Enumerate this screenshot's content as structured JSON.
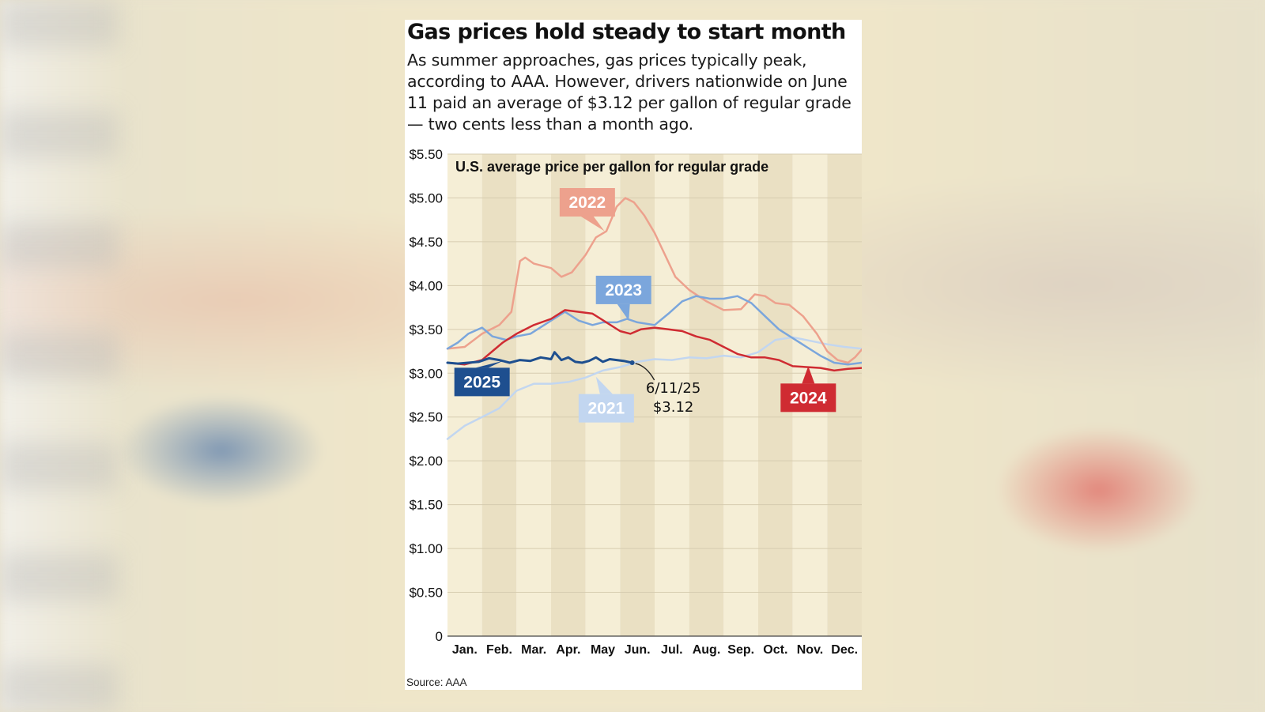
{
  "header": {
    "title": "Gas prices hold steady to start month",
    "subtitle": "As summer approaches, gas prices typically peak, according to AAA. However, drivers nationwide on June 11 paid an average of $3.12 per gallon of regular grade — two cents less than a month ago."
  },
  "footer": {
    "source": "Source: AAA"
  },
  "colors": {
    "y2021": "#c2d6f0",
    "y2022": "#eda18d",
    "y2023": "#7ba6dc",
    "y2024": "#cf2b32",
    "y2025": "#1e4f8f",
    "band_light": "#f5eed6",
    "band_dark": "#eae0c3",
    "grid": "#d6ccb0"
  },
  "chart_data": {
    "type": "line",
    "title": "U.S. average price per gallon for regular grade",
    "y_tick_labels": [
      "0",
      "$0.50",
      "$1.00",
      "$1.50",
      "$2.00",
      "$2.50",
      "$3.00",
      "$3.50",
      "$4.00",
      "$4.50",
      "$5.00",
      "$5.50"
    ],
    "y_ticks": [
      0,
      0.5,
      1,
      1.5,
      2,
      2.5,
      3,
      3.5,
      4,
      4.5,
      5,
      5.5
    ],
    "ylim": [
      0,
      5.5
    ],
    "categories": [
      "Jan.",
      "Feb.",
      "Mar.",
      "Apr.",
      "May",
      "Jun.",
      "Jul.",
      "Aug.",
      "Sep.",
      "Oct.",
      "Nov.",
      "Dec."
    ],
    "xlim": [
      0,
      12
    ],
    "grid": true,
    "series": [
      {
        "name": "2021",
        "color_key": "y2021",
        "points": [
          [
            0,
            2.25
          ],
          [
            0.5,
            2.4
          ],
          [
            1,
            2.5
          ],
          [
            1.5,
            2.6
          ],
          [
            2,
            2.8
          ],
          [
            2.5,
            2.88
          ],
          [
            3,
            2.88
          ],
          [
            3.5,
            2.9
          ],
          [
            4,
            2.95
          ],
          [
            4.5,
            3.03
          ],
          [
            5,
            3.07
          ],
          [
            5.5,
            3.13
          ],
          [
            6,
            3.16
          ],
          [
            6.5,
            3.15
          ],
          [
            7,
            3.18
          ],
          [
            7.5,
            3.17
          ],
          [
            8,
            3.2
          ],
          [
            8.5,
            3.18
          ],
          [
            9,
            3.24
          ],
          [
            9.5,
            3.38
          ],
          [
            10,
            3.41
          ],
          [
            10.5,
            3.37
          ],
          [
            11,
            3.33
          ],
          [
            11.5,
            3.3
          ],
          [
            12,
            3.28
          ]
        ]
      },
      {
        "name": "2022",
        "color_key": "y2022",
        "points": [
          [
            0,
            3.28
          ],
          [
            0.5,
            3.3
          ],
          [
            1,
            3.45
          ],
          [
            1.5,
            3.55
          ],
          [
            1.85,
            3.7
          ],
          [
            2.1,
            4.28
          ],
          [
            2.25,
            4.32
          ],
          [
            2.5,
            4.25
          ],
          [
            3,
            4.2
          ],
          [
            3.3,
            4.1
          ],
          [
            3.6,
            4.15
          ],
          [
            4,
            4.35
          ],
          [
            4.3,
            4.55
          ],
          [
            4.6,
            4.62
          ],
          [
            4.9,
            4.9
          ],
          [
            5.15,
            5.0
          ],
          [
            5.4,
            4.95
          ],
          [
            5.7,
            4.8
          ],
          [
            6,
            4.6
          ],
          [
            6.3,
            4.35
          ],
          [
            6.6,
            4.1
          ],
          [
            7,
            3.95
          ],
          [
            7.5,
            3.82
          ],
          [
            8,
            3.72
          ],
          [
            8.5,
            3.73
          ],
          [
            8.9,
            3.9
          ],
          [
            9.2,
            3.88
          ],
          [
            9.5,
            3.8
          ],
          [
            9.9,
            3.78
          ],
          [
            10.3,
            3.65
          ],
          [
            10.7,
            3.45
          ],
          [
            11,
            3.25
          ],
          [
            11.3,
            3.15
          ],
          [
            11.6,
            3.12
          ],
          [
            11.8,
            3.18
          ],
          [
            12,
            3.27
          ]
        ]
      },
      {
        "name": "2023",
        "color_key": "y2023",
        "points": [
          [
            0,
            3.28
          ],
          [
            0.3,
            3.35
          ],
          [
            0.6,
            3.45
          ],
          [
            1,
            3.52
          ],
          [
            1.3,
            3.42
          ],
          [
            1.7,
            3.38
          ],
          [
            2,
            3.42
          ],
          [
            2.4,
            3.45
          ],
          [
            2.8,
            3.55
          ],
          [
            3,
            3.6
          ],
          [
            3.4,
            3.7
          ],
          [
            3.8,
            3.6
          ],
          [
            4.2,
            3.55
          ],
          [
            4.5,
            3.58
          ],
          [
            4.9,
            3.58
          ],
          [
            5.2,
            3.62
          ],
          [
            5.5,
            3.58
          ],
          [
            6,
            3.55
          ],
          [
            6.4,
            3.68
          ],
          [
            6.8,
            3.82
          ],
          [
            7.2,
            3.88
          ],
          [
            7.6,
            3.85
          ],
          [
            8,
            3.85
          ],
          [
            8.4,
            3.88
          ],
          [
            8.8,
            3.8
          ],
          [
            9.2,
            3.65
          ],
          [
            9.6,
            3.5
          ],
          [
            10,
            3.4
          ],
          [
            10.4,
            3.3
          ],
          [
            10.8,
            3.2
          ],
          [
            11.2,
            3.12
          ],
          [
            11.6,
            3.1
          ],
          [
            12,
            3.12
          ]
        ]
      },
      {
        "name": "2024",
        "color_key": "y2024",
        "points": [
          [
            0,
            3.12
          ],
          [
            0.5,
            3.1
          ],
          [
            1,
            3.15
          ],
          [
            1.3,
            3.25
          ],
          [
            1.6,
            3.35
          ],
          [
            2,
            3.45
          ],
          [
            2.5,
            3.55
          ],
          [
            3,
            3.62
          ],
          [
            3.4,
            3.72
          ],
          [
            3.8,
            3.7
          ],
          [
            4.2,
            3.68
          ],
          [
            4.6,
            3.58
          ],
          [
            5,
            3.48
          ],
          [
            5.3,
            3.45
          ],
          [
            5.6,
            3.5
          ],
          [
            6,
            3.52
          ],
          [
            6.4,
            3.5
          ],
          [
            6.8,
            3.48
          ],
          [
            7.2,
            3.42
          ],
          [
            7.6,
            3.38
          ],
          [
            8,
            3.3
          ],
          [
            8.4,
            3.22
          ],
          [
            8.8,
            3.18
          ],
          [
            9.2,
            3.18
          ],
          [
            9.6,
            3.15
          ],
          [
            10,
            3.08
          ],
          [
            10.4,
            3.07
          ],
          [
            10.8,
            3.06
          ],
          [
            11.2,
            3.03
          ],
          [
            11.6,
            3.05
          ],
          [
            12,
            3.06
          ]
        ]
      },
      {
        "name": "2025",
        "color_key": "y2025",
        "points": [
          [
            0,
            3.12
          ],
          [
            0.3,
            3.11
          ],
          [
            0.6,
            3.12
          ],
          [
            0.9,
            3.13
          ],
          [
            1.2,
            3.17
          ],
          [
            1.5,
            3.15
          ],
          [
            1.8,
            3.12
          ],
          [
            2.1,
            3.15
          ],
          [
            2.4,
            3.14
          ],
          [
            2.7,
            3.18
          ],
          [
            3,
            3.16
          ],
          [
            3.1,
            3.24
          ],
          [
            3.3,
            3.15
          ],
          [
            3.5,
            3.18
          ],
          [
            3.7,
            3.13
          ],
          [
            3.9,
            3.12
          ],
          [
            4.1,
            3.14
          ],
          [
            4.3,
            3.18
          ],
          [
            4.5,
            3.13
          ],
          [
            4.7,
            3.16
          ],
          [
            4.9,
            3.15
          ],
          [
            5.1,
            3.14
          ],
          [
            5.35,
            3.12
          ]
        ]
      }
    ],
    "series_labels": [
      {
        "text": "2022",
        "series": "2022",
        "x": 4.05,
        "y": 4.95,
        "px": 4.55,
        "py": 4.62
      },
      {
        "text": "2023",
        "series": "2023",
        "x": 5.1,
        "y": 3.95,
        "px": 5.25,
        "py": 3.6
      },
      {
        "text": "2025",
        "series": "2025",
        "x": 1.0,
        "y": 2.9,
        "px": 1.6,
        "py": 3.14
      },
      {
        "text": "2021",
        "series": "2021",
        "x": 4.6,
        "y": 2.6,
        "px": 4.3,
        "py": 2.96
      },
      {
        "text": "2024",
        "series": "2024",
        "x": 10.45,
        "y": 2.72,
        "px": 10.45,
        "py": 3.08
      }
    ],
    "annotation": {
      "date": "6/11/25",
      "value": "$3.12",
      "x": 5.35,
      "y": 3.12
    }
  }
}
